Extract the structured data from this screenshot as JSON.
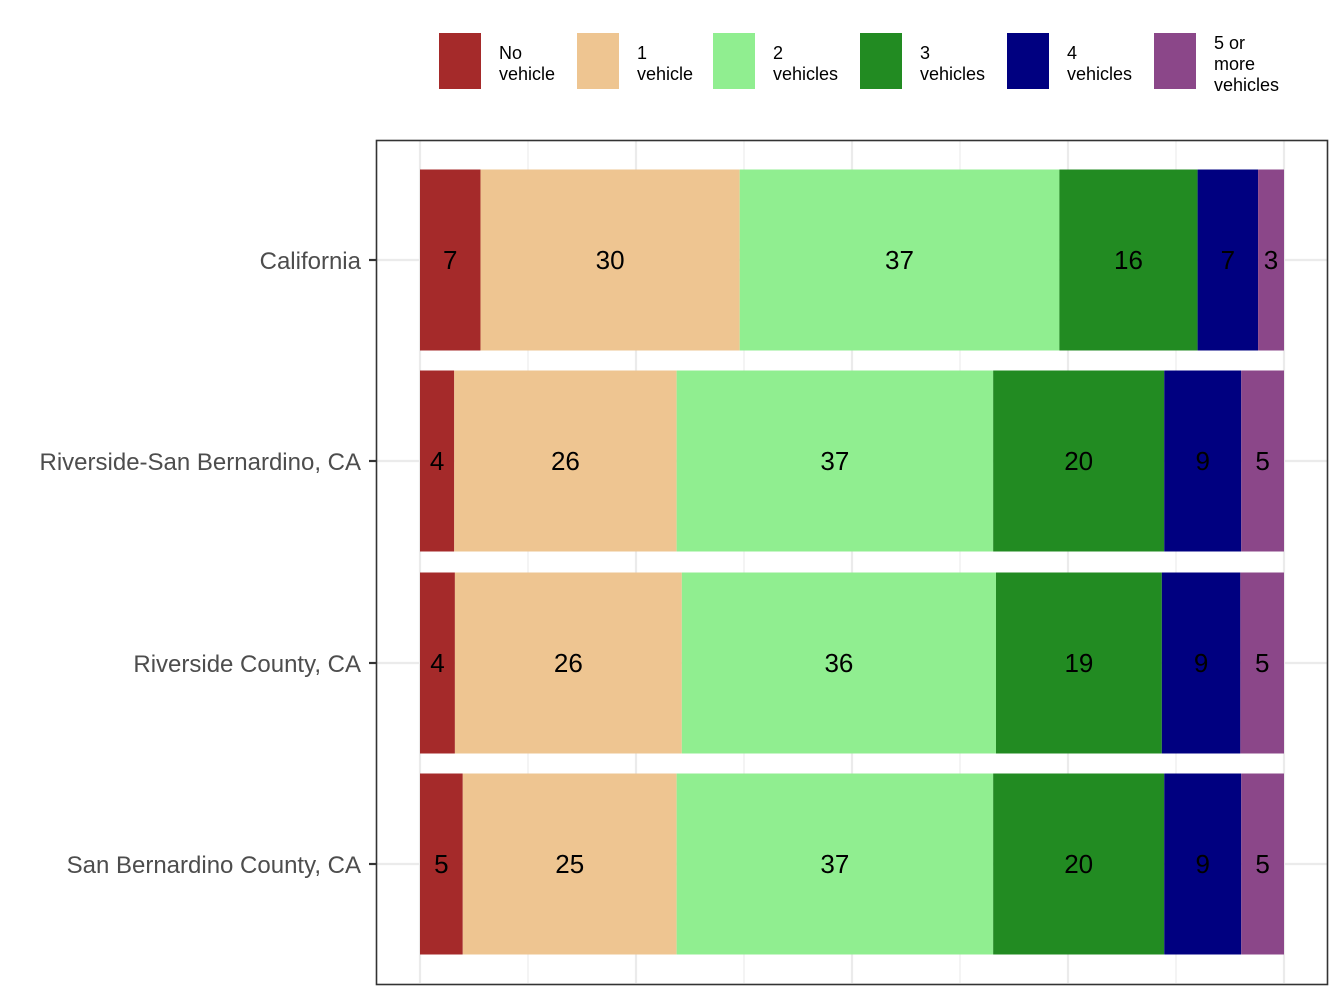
{
  "chart_data": {
    "type": "bar",
    "orientation": "horizontal",
    "stacked": true,
    "categories": [
      "California",
      "Riverside-San Bernardino, CA",
      "Riverside County, CA",
      "San Bernardino County, CA"
    ],
    "series": [
      {
        "name": "No vehicle",
        "color": "#a52a2a",
        "values": [
          7,
          4,
          4,
          5
        ],
        "data_labels": [
          "7",
          "4",
          "4",
          "5"
        ]
      },
      {
        "name": "1 vehicle",
        "color": "#eec591",
        "values": [
          30,
          26,
          26,
          25
        ],
        "data_labels": [
          "30",
          "26",
          "26",
          "25"
        ]
      },
      {
        "name": "2 vehicles",
        "color": "#90ee90",
        "values": [
          37,
          37,
          36,
          37
        ],
        "data_labels": [
          "37",
          "37",
          "36",
          "37"
        ]
      },
      {
        "name": "3 vehicles",
        "color": "#228b22",
        "values": [
          16,
          20,
          19,
          20
        ],
        "data_labels": [
          "16",
          "20",
          "19",
          "20"
        ]
      },
      {
        "name": "4 vehicles",
        "color": "#000080",
        "values": [
          7,
          9,
          9,
          9
        ],
        "data_labels": [
          "7",
          "9",
          "9",
          "9"
        ]
      },
      {
        "name": "5 or more vehicles",
        "color": "#8b4789",
        "values": [
          3,
          5,
          5,
          5
        ],
        "data_labels": [
          "3",
          "5",
          "5",
          "5"
        ]
      }
    ],
    "legend": {
      "position": "top",
      "entries": [
        {
          "lines": [
            "No",
            "vehicle"
          ]
        },
        {
          "lines": [
            "1",
            "vehicle"
          ]
        },
        {
          "lines": [
            "2",
            "vehicles"
          ]
        },
        {
          "lines": [
            "3",
            "vehicles"
          ]
        },
        {
          "lines": [
            "4",
            "vehicles"
          ]
        },
        {
          "lines": [
            "5 or",
            "more",
            "vehicles"
          ]
        }
      ]
    },
    "title": "",
    "xlabel": "",
    "ylabel": "",
    "xlim": [
      0,
      100
    ],
    "grid": true,
    "x_tick_labels_shown": false
  }
}
